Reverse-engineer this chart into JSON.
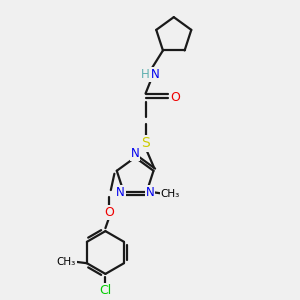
{
  "bg_color": "#f0f0f0",
  "atom_colors": {
    "C": "#000000",
    "H": "#5fafaf",
    "N": "#0000ee",
    "O": "#ee0000",
    "S": "#cccc00",
    "Cl": "#00cc00"
  },
  "bond_color": "#1a1a1a",
  "bond_width": 1.6,
  "figsize": [
    3.0,
    3.0
  ],
  "dpi": 100
}
